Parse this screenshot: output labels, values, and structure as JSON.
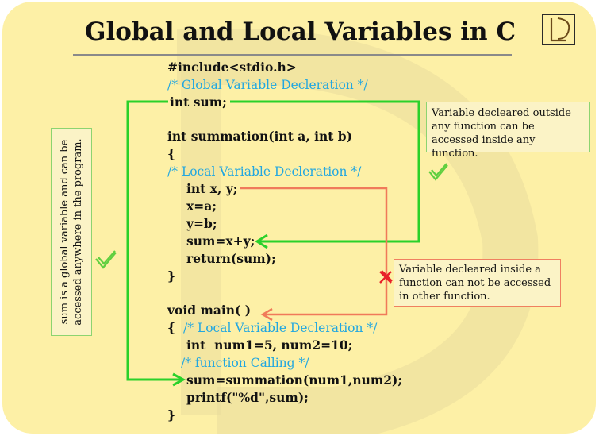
{
  "title": "Global and Local Variables in C",
  "code": {
    "include": "#include<stdio.h>",
    "comment_global": "/* Global Variable Decleration */",
    "global_decl": "int sum;",
    "func_sig": "int summation(int a, int b)",
    "open_brace_1": "{",
    "comment_local_1": "/* Local Variable Decleration */",
    "local_decl": "int x, y;",
    "assign_x": "x=a;",
    "assign_y": "y=b;",
    "sum_expr": "sum=x+y;",
    "return_stmt": "return(sum);",
    "close_brace_1": "}",
    "main_sig": "void main( )",
    "open_brace_2": "{",
    "comment_local_2": "/* Local Variable Decleration */",
    "main_decl": "int  num1=5, num2=10;",
    "comment_call": "/* function Calling */",
    "call_stmt": "sum=summation(num1,num2);",
    "printf_stmt": "printf(\"%d\",sum);",
    "close_brace_2": "}"
  },
  "notes": {
    "global_note": "Variable decleared outside any function can be accessed inside any function.",
    "local_note": "Variable decleared  inside a function can not be accessed in other function.",
    "vertical_note": "sum is a global variable and can be accessed anywhere in the program."
  },
  "colors": {
    "background": "#fdf0a6",
    "comment": "#22a7e0",
    "global_arrow": "#2ad12a",
    "local_arrow": "#f07a5a",
    "cross": "#e8202a"
  },
  "icons": [
    "logo-icon",
    "checkmark-icon",
    "cross-icon"
  ]
}
